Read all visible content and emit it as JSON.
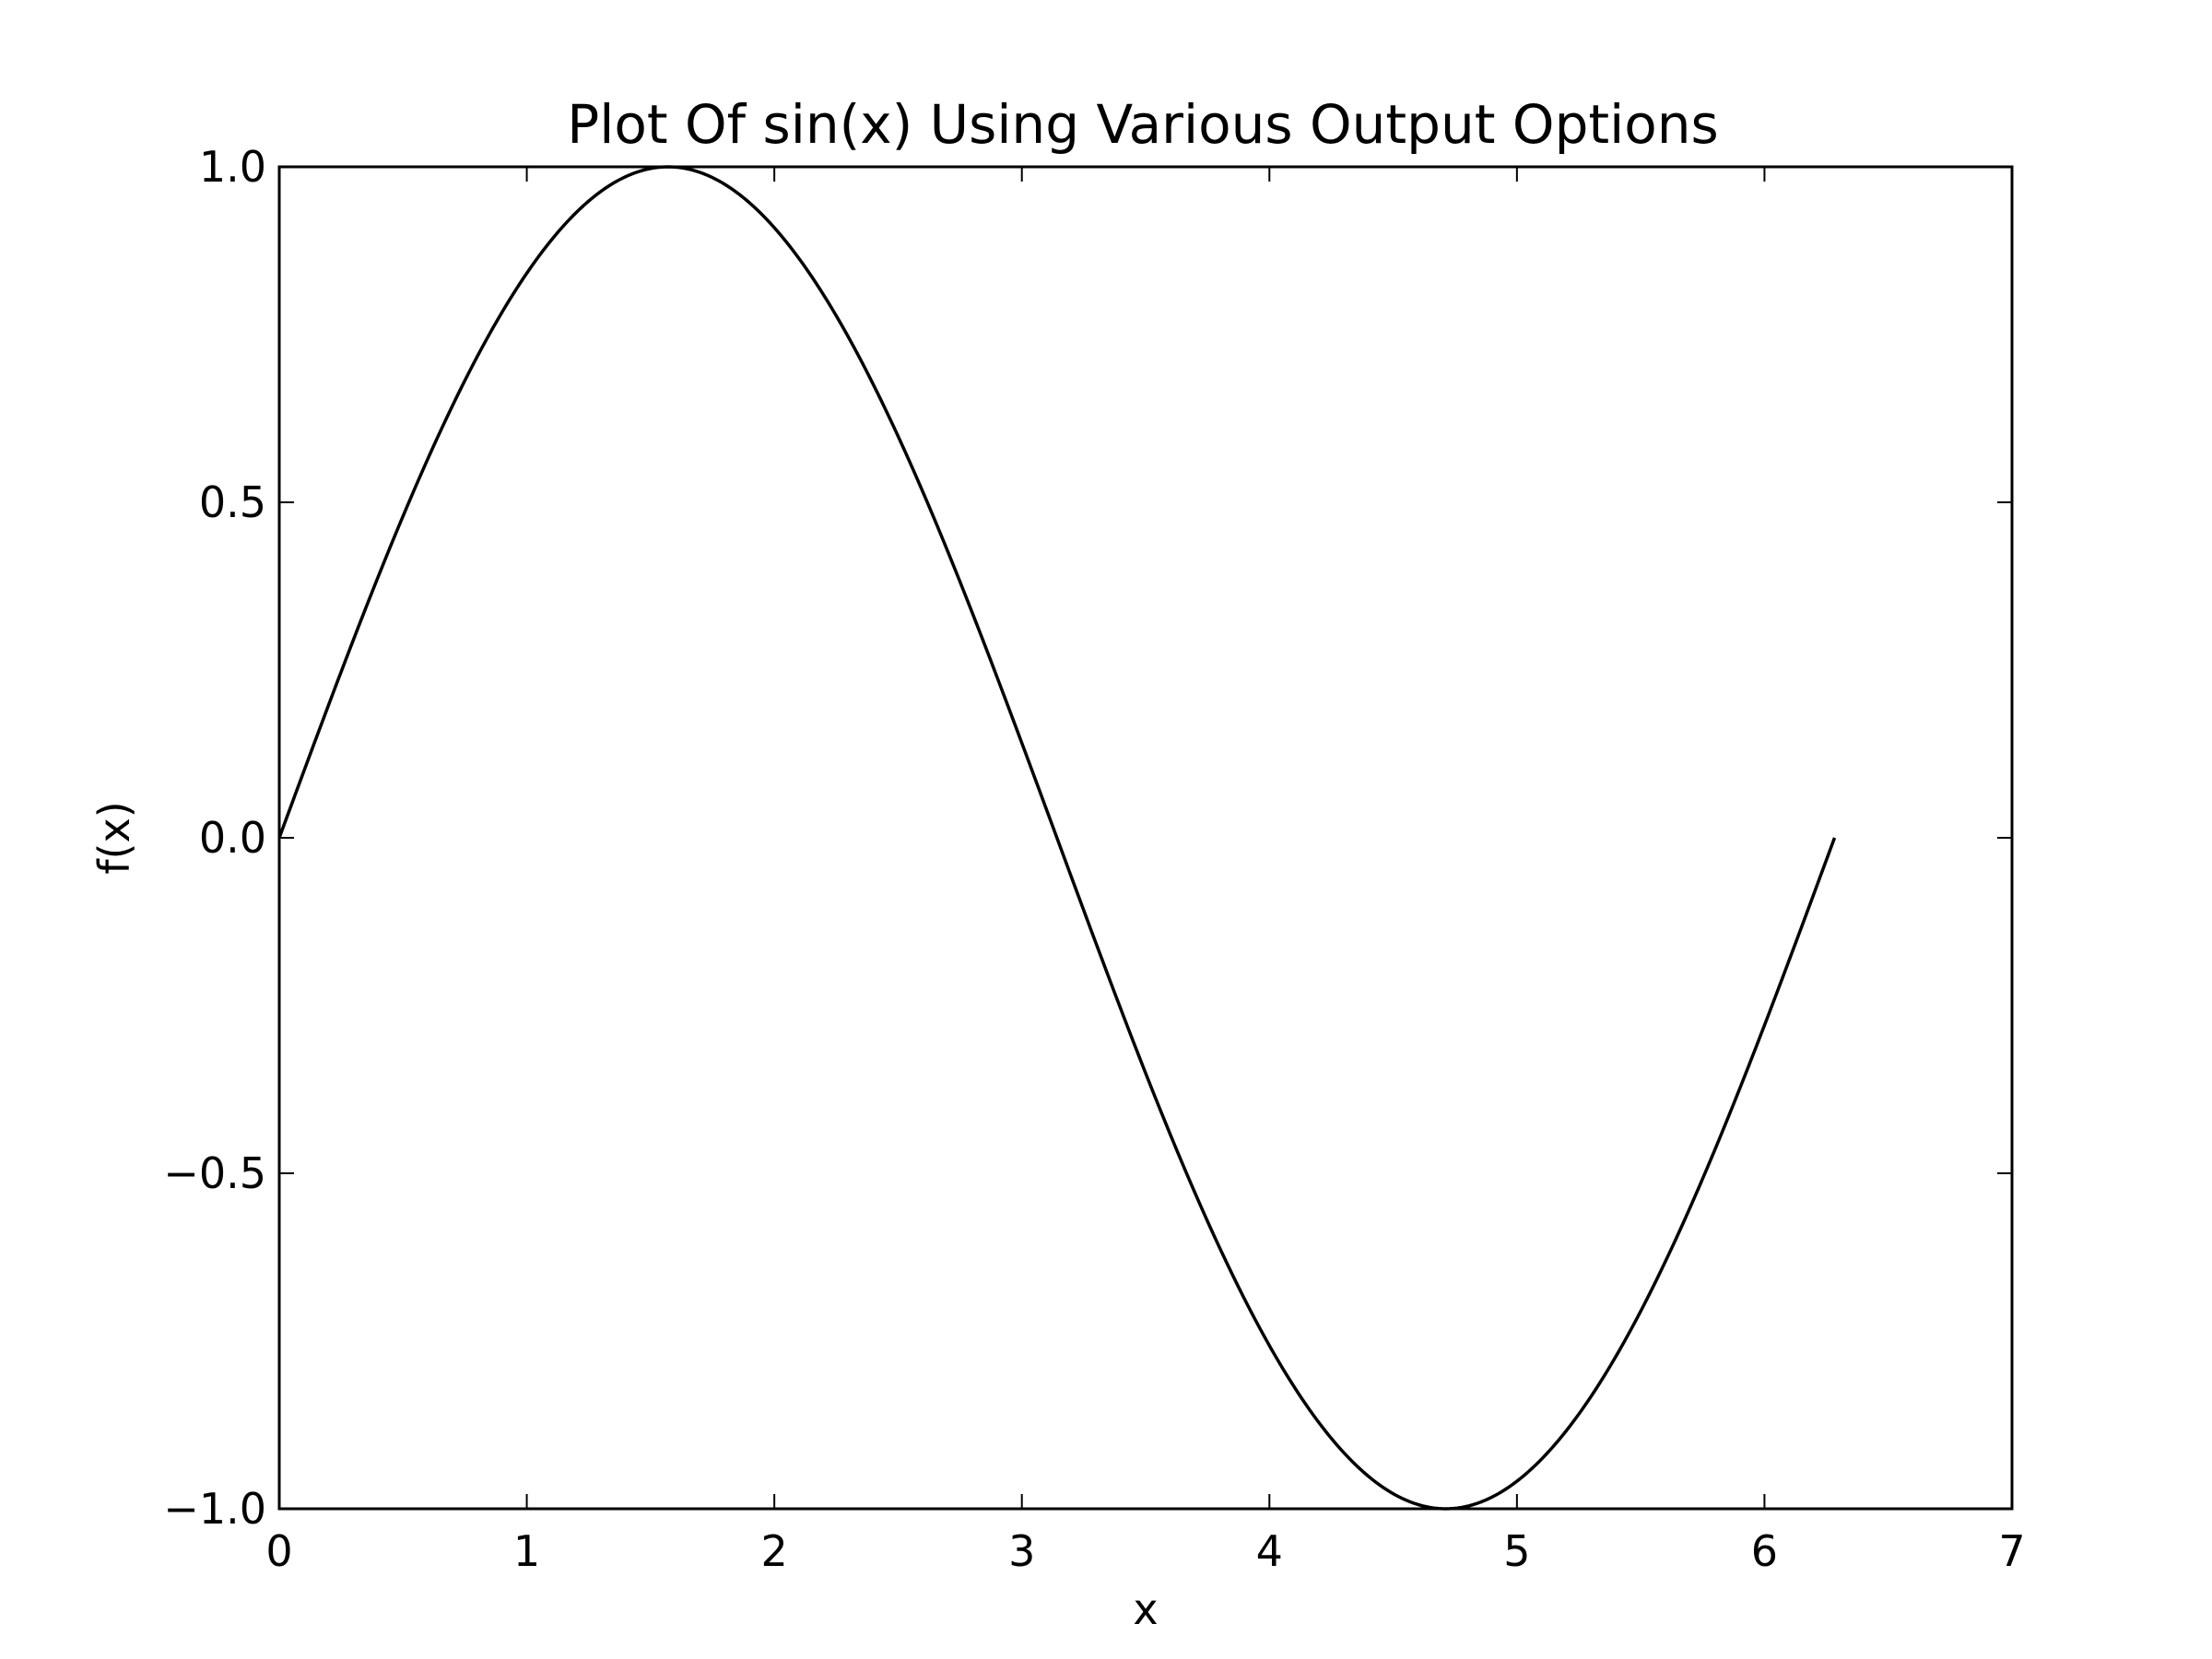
{
  "chart_data": {
    "type": "line",
    "title": "Plot Of sin(x) Using Various Output Options",
    "xlabel": "x",
    "ylabel": "f(x)",
    "xlim": [
      0,
      7
    ],
    "ylim": [
      -1.0,
      1.0
    ],
    "grid": false,
    "x_ticks": [
      0,
      1,
      2,
      3,
      4,
      5,
      6,
      7
    ],
    "x_tick_labels": [
      "0",
      "1",
      "2",
      "3",
      "4",
      "5",
      "6",
      "7"
    ],
    "y_ticks": [
      -1.0,
      -0.5,
      0.0,
      0.5,
      1.0
    ],
    "y_tick_labels": [
      "−1.0",
      "−0.5",
      "0.0",
      "0.5",
      "1.0"
    ],
    "series": [
      {
        "function": "sin",
        "domain": [
          0,
          6.2832
        ],
        "color": "#000000"
      }
    ]
  }
}
